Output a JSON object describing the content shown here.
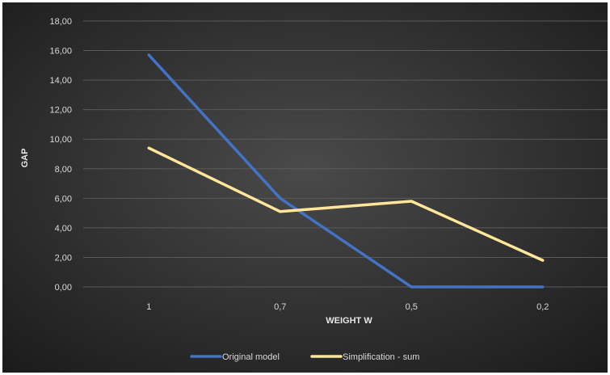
{
  "chart_data": {
    "type": "line",
    "title": "",
    "xlabel": "WEIGHT W",
    "ylabel": "GAP",
    "categories": [
      "1",
      "0,7",
      "0,5",
      "0,2"
    ],
    "ylim": [
      0,
      18
    ],
    "yticks": [
      0,
      2,
      4,
      6,
      8,
      10,
      12,
      14,
      16,
      18
    ],
    "ytick_labels": [
      "0,00",
      "2,00",
      "4,00",
      "6,00",
      "8,00",
      "10,00",
      "12,00",
      "14,00",
      "16,00",
      "18,00"
    ],
    "grid": true,
    "legend_position": "bottom",
    "series": [
      {
        "name": "Original model",
        "values": [
          15.7,
          6.0,
          0.0,
          0.0
        ],
        "color": "#4472c4"
      },
      {
        "name": "Simplification - sum",
        "values": [
          9.4,
          5.1,
          5.8,
          1.8
        ],
        "color": "#ffe699"
      }
    ],
    "background": "radial-gradient dark gray",
    "background_colors": [
      "#4a4a4a",
      "#1a1a1a"
    ]
  }
}
